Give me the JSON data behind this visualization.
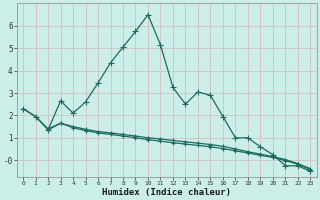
{
  "xlabel": "Humidex (Indice chaleur)",
  "bg_color": "#cceee8",
  "grid_color": "#d4b8b8",
  "line_color": "#1e6b5e",
  "x_ticks": [
    0,
    1,
    2,
    3,
    4,
    5,
    6,
    7,
    8,
    9,
    10,
    11,
    12,
    13,
    14,
    15,
    16,
    17,
    18,
    19,
    20,
    21,
    22,
    23
  ],
  "ylim": [
    -0.75,
    7.0
  ],
  "xlim": [
    -0.5,
    23.5
  ],
  "line1_x": [
    0,
    1,
    2,
    3,
    4,
    5,
    6,
    7,
    8,
    9,
    10,
    11,
    12,
    13,
    14,
    15,
    16,
    17,
    18,
    19,
    20,
    21,
    22,
    23
  ],
  "line1_y": [
    2.3,
    1.95,
    1.35,
    2.65,
    2.1,
    2.6,
    3.45,
    4.35,
    5.05,
    5.75,
    6.5,
    5.15,
    3.25,
    2.5,
    3.05,
    2.9,
    1.95,
    1.0,
    1.0,
    0.6,
    0.25,
    -0.25,
    -0.25,
    -0.5
  ],
  "line2_x": [
    0,
    1,
    2,
    3,
    4,
    5,
    6,
    7,
    8,
    9,
    10,
    11,
    12,
    13,
    14,
    15,
    16,
    17,
    18,
    19,
    20,
    21,
    22,
    23
  ],
  "line2_y": [
    2.3,
    1.95,
    1.4,
    1.65,
    1.5,
    1.38,
    1.28,
    1.22,
    1.15,
    1.08,
    1.0,
    0.95,
    0.88,
    0.82,
    0.76,
    0.7,
    0.62,
    0.5,
    0.38,
    0.27,
    0.16,
    0.03,
    -0.15,
    -0.38
  ],
  "line3_x": [
    2,
    3,
    4,
    5,
    6,
    7,
    8,
    9,
    10,
    11,
    12,
    13,
    14,
    15,
    16,
    17,
    18,
    19,
    20,
    21,
    22,
    23
  ],
  "line3_y": [
    1.35,
    1.65,
    1.45,
    1.32,
    1.22,
    1.15,
    1.08,
    1.0,
    0.92,
    0.85,
    0.78,
    0.72,
    0.66,
    0.6,
    0.52,
    0.42,
    0.32,
    0.22,
    0.12,
    -0.02,
    -0.18,
    -0.42
  ],
  "yticks": [
    0,
    1,
    2,
    3,
    4,
    5,
    6
  ],
  "ytick_labels": [
    "-0",
    "1",
    "2",
    "3",
    "4",
    "5",
    "6"
  ]
}
